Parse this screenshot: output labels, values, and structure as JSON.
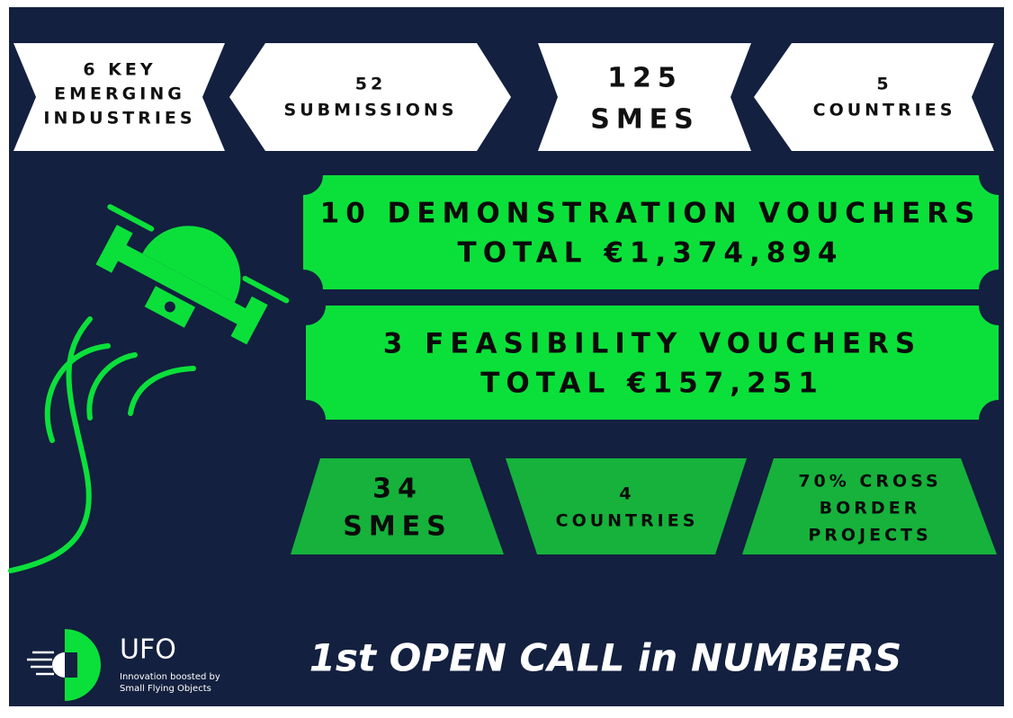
{
  "top_stats": [
    {
      "lines": [
        "6 KEY",
        "EMERGING",
        "INDUSTRIES"
      ]
    },
    {
      "lines": [
        "52",
        "SUBMISSIONS"
      ]
    },
    {
      "lines": [
        "125",
        "SMES"
      ]
    },
    {
      "lines": [
        "5",
        "COUNTRIES"
      ]
    }
  ],
  "vouchers": [
    {
      "lines": [
        "10 DEMONSTRATION VOUCHERS",
        "TOTAL €1,374,894"
      ]
    },
    {
      "lines": [
        "3 FEASIBILITY VOUCHERS",
        "TOTAL €157,251"
      ]
    }
  ],
  "bottom_stats": [
    {
      "lines": [
        "34",
        "SMES"
      ]
    },
    {
      "lines": [
        "4",
        "COUNTRIES"
      ]
    },
    {
      "lines": [
        "70% CROSS",
        "BORDER",
        "PROJECTS"
      ]
    }
  ],
  "logo": {
    "name": "UFO",
    "tagline": [
      "Innovation boosted by",
      "Small Flying Objects"
    ]
  },
  "title": "1st OPEN CALL in NUMBERS"
}
